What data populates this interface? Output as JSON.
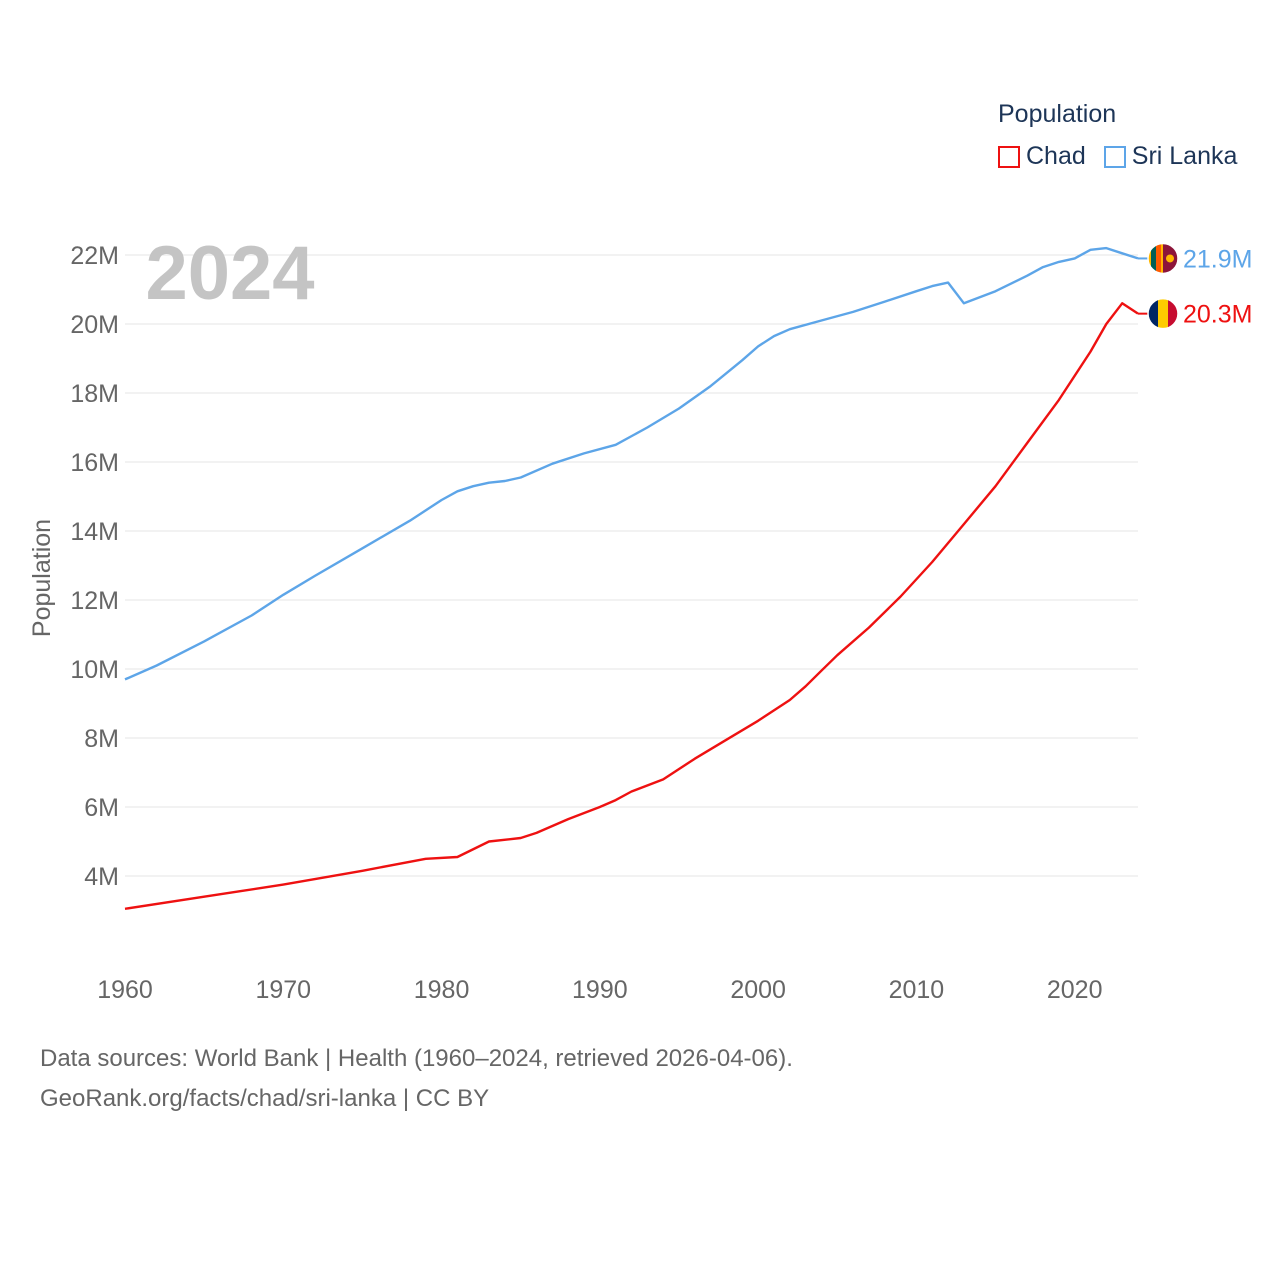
{
  "legend": {
    "title": "Population",
    "items": [
      {
        "label": "Chad",
        "color": "#ee1111"
      },
      {
        "label": "Sri Lanka",
        "color": "#5da5e8"
      }
    ]
  },
  "source": {
    "line1": "Data sources: World Bank | Health (1960–2024, retrieved 2026-04-06).",
    "line2": "GeoRank.org/facts/chad/sri-lanka | CC BY"
  },
  "chart_data": {
    "type": "line",
    "title": "Population",
    "year_label": "2024",
    "xlabel": "",
    "ylabel": "Population",
    "xlim": [
      1960,
      2024
    ],
    "ylim": [
      2000000,
      22000000
    ],
    "x_ticks": [
      1960,
      1970,
      1980,
      1990,
      2000,
      2010,
      2020
    ],
    "y_ticks": [
      {
        "value": 4000000,
        "label": "4M"
      },
      {
        "value": 6000000,
        "label": "6M"
      },
      {
        "value": 8000000,
        "label": "8M"
      },
      {
        "value": 10000000,
        "label": "10M"
      },
      {
        "value": 12000000,
        "label": "12M"
      },
      {
        "value": 14000000,
        "label": "14M"
      },
      {
        "value": 16000000,
        "label": "16M"
      },
      {
        "value": 18000000,
        "label": "18M"
      },
      {
        "value": 20000000,
        "label": "20M"
      },
      {
        "value": 22000000,
        "label": "22M"
      }
    ],
    "grid": true,
    "legend_position": "top-right",
    "series": [
      {
        "name": "Sri Lanka",
        "color": "#5da5e8",
        "end_label": "21.9M",
        "flag": "sri-lanka-flag-icon",
        "points": [
          [
            1960,
            9700000
          ],
          [
            1962,
            10100000
          ],
          [
            1965,
            10800000
          ],
          [
            1968,
            11550000
          ],
          [
            1970,
            12150000
          ],
          [
            1972,
            12700000
          ],
          [
            1975,
            13500000
          ],
          [
            1978,
            14300000
          ],
          [
            1980,
            14900000
          ],
          [
            1981,
            15150000
          ],
          [
            1982,
            15300000
          ],
          [
            1983,
            15400000
          ],
          [
            1984,
            15450000
          ],
          [
            1985,
            15550000
          ],
          [
            1987,
            15950000
          ],
          [
            1989,
            16250000
          ],
          [
            1991,
            16500000
          ],
          [
            1993,
            17000000
          ],
          [
            1995,
            17550000
          ],
          [
            1997,
            18200000
          ],
          [
            1999,
            18950000
          ],
          [
            2000,
            19350000
          ],
          [
            2001,
            19650000
          ],
          [
            2002,
            19850000
          ],
          [
            2004,
            20100000
          ],
          [
            2006,
            20350000
          ],
          [
            2008,
            20650000
          ],
          [
            2010,
            20950000
          ],
          [
            2011,
            21100000
          ],
          [
            2012,
            21200000
          ],
          [
            2013,
            20600000
          ],
          [
            2015,
            20950000
          ],
          [
            2017,
            21400000
          ],
          [
            2018,
            21650000
          ],
          [
            2019,
            21800000
          ],
          [
            2020,
            21900000
          ],
          [
            2021,
            22150000
          ],
          [
            2022,
            22200000
          ],
          [
            2023,
            22050000
          ],
          [
            2024,
            21900000
          ]
        ]
      },
      {
        "name": "Chad",
        "color": "#ee1111",
        "end_label": "20.3M",
        "flag": "chad-flag-icon",
        "points": [
          [
            1960,
            3050000
          ],
          [
            1965,
            3400000
          ],
          [
            1970,
            3750000
          ],
          [
            1975,
            4150000
          ],
          [
            1979,
            4500000
          ],
          [
            1981,
            4550000
          ],
          [
            1983,
            5000000
          ],
          [
            1985,
            5100000
          ],
          [
            1986,
            5250000
          ],
          [
            1988,
            5650000
          ],
          [
            1990,
            6000000
          ],
          [
            1991,
            6200000
          ],
          [
            1992,
            6450000
          ],
          [
            1994,
            6800000
          ],
          [
            1996,
            7400000
          ],
          [
            1998,
            7950000
          ],
          [
            2000,
            8500000
          ],
          [
            2002,
            9100000
          ],
          [
            2003,
            9500000
          ],
          [
            2004,
            9950000
          ],
          [
            2005,
            10400000
          ],
          [
            2007,
            11200000
          ],
          [
            2009,
            12100000
          ],
          [
            2011,
            13100000
          ],
          [
            2013,
            14200000
          ],
          [
            2015,
            15300000
          ],
          [
            2017,
            16550000
          ],
          [
            2019,
            17800000
          ],
          [
            2021,
            19200000
          ],
          [
            2022,
            20000000
          ],
          [
            2023,
            20600000
          ],
          [
            2024,
            20300000
          ]
        ]
      }
    ]
  }
}
